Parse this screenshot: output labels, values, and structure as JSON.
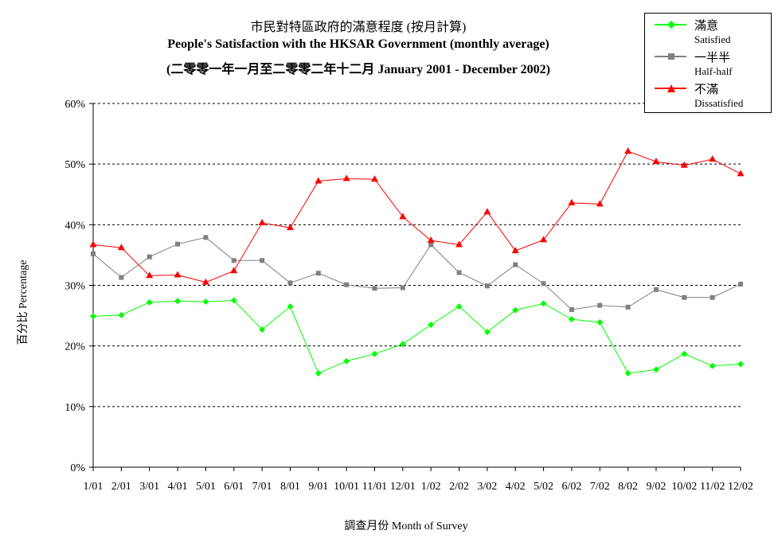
{
  "title_zh": "市民對特區政府的滿意程度 (按月計算)",
  "title_en": "People's Satisfaction with the HKSAR Government (monthly average)",
  "subtitle": "(二零零一年一月至二零零二年十二月 January 2001 - December 2002)",
  "chart_data": {
    "type": "line",
    "title": "市民對特區政府的滿意程度 (按月計算) People's Satisfaction with the HKSAR Government (monthly average)",
    "xlabel": "調查月份 Month of Survey",
    "ylabel": "百分比 Percentage",
    "ylim": [
      0,
      60
    ],
    "yticks": [
      0,
      10,
      20,
      30,
      40,
      50,
      60
    ],
    "ytick_labels": [
      "0%",
      "10%",
      "20%",
      "30%",
      "40%",
      "50%",
      "60%"
    ],
    "grid": true,
    "legend_position": "top-right",
    "categories": [
      "1/01",
      "2/01",
      "3/01",
      "4/01",
      "5/01",
      "6/01",
      "7/01",
      "8/01",
      "9/01",
      "10/01",
      "11/01",
      "12/01",
      "1/02",
      "2/02",
      "3/02",
      "4/02",
      "5/02",
      "6/02",
      "7/02",
      "8/02",
      "9/02",
      "10/02",
      "11/02",
      "12/02"
    ],
    "series": [
      {
        "name": "滿意",
        "name_en": "Satisfied",
        "color": "#00ff00",
        "marker": "diamond",
        "values": [
          24.9,
          25.1,
          27.2,
          27.4,
          27.3,
          27.5,
          22.7,
          26.5,
          15.5,
          17.5,
          18.7,
          20.3,
          23.5,
          26.5,
          22.3,
          25.9,
          27.0,
          24.4,
          23.9,
          15.5,
          16.1,
          18.7,
          16.7,
          17.0
        ]
      },
      {
        "name": "一半半",
        "name_en": "Half-half",
        "color": "#808080",
        "marker": "square",
        "values": [
          35.2,
          31.3,
          34.7,
          36.8,
          37.9,
          34.1,
          34.1,
          30.4,
          32.0,
          30.1,
          29.5,
          29.6,
          36.7,
          32.1,
          29.9,
          33.4,
          30.3,
          26.0,
          26.7,
          26.4,
          29.3,
          28.0,
          28.0,
          30.2
        ]
      },
      {
        "name": "不滿",
        "name_en": "Dissatisfied",
        "color": "#ff0000",
        "marker": "triangle",
        "values": [
          36.7,
          36.2,
          31.6,
          31.7,
          30.5,
          32.4,
          40.3,
          39.5,
          47.2,
          47.6,
          47.5,
          41.3,
          37.4,
          36.7,
          42.1,
          35.7,
          37.5,
          43.6,
          43.4,
          52.1,
          50.4,
          49.8,
          50.8,
          48.4
        ]
      }
    ]
  }
}
